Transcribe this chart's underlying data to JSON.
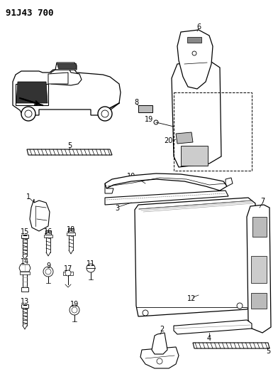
{
  "title": "91J43 700",
  "bg_color": "#ffffff",
  "fig_width": 3.92,
  "fig_height": 5.33,
  "dpi": 100
}
